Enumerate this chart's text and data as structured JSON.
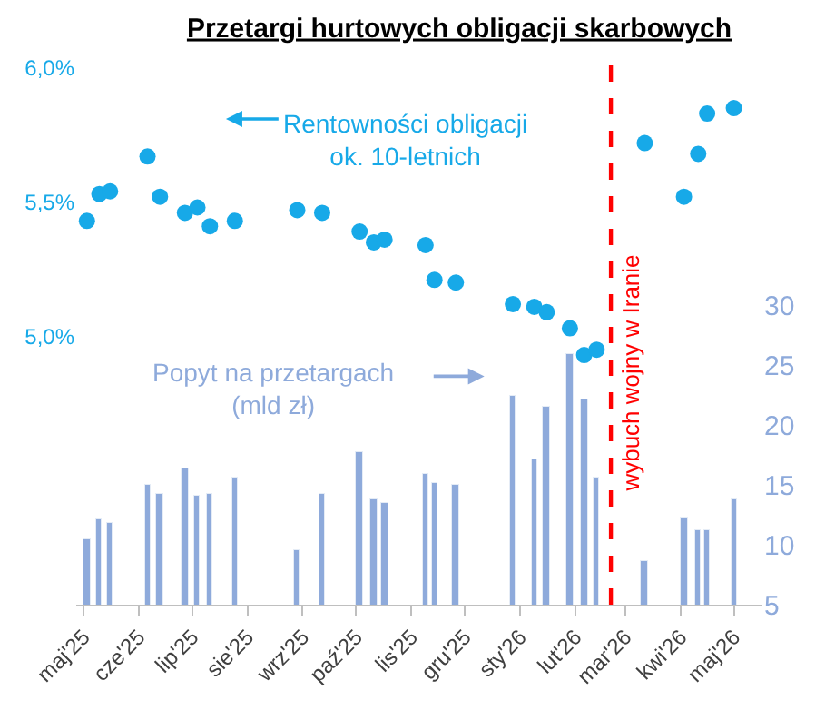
{
  "chart_data": {
    "type": "scatter",
    "title": "Przetargi hurtowych obligacji skarbowych",
    "x": [
      "2025-05-03",
      "2025-05-10",
      "2025-05-16",
      "2025-06-06",
      "2025-06-13",
      "2025-06-27",
      "2025-07-04",
      "2025-07-11",
      "2025-07-25",
      "2025-08-29",
      "2025-09-12",
      "2025-10-03",
      "2025-10-11",
      "2025-10-17",
      "2025-11-09",
      "2025-11-14",
      "2025-11-26",
      "2025-12-28",
      "2026-01-09",
      "2026-01-16",
      "2026-01-29",
      "2026-02-06",
      "2026-02-13",
      "2026-03-12",
      "2026-04-03",
      "2026-04-11",
      "2026-04-16",
      "2026-05-01"
    ],
    "series": [
      {
        "name": "Rentowności obligacji\nok. 10-letnich",
        "color": "#17a9e8",
        "values": [
          5.43,
          5.53,
          5.54,
          5.67,
          5.52,
          5.46,
          5.48,
          5.41,
          5.43,
          5.47,
          5.46,
          5.39,
          5.35,
          5.36,
          5.34,
          5.21,
          5.2,
          5.12,
          5.11,
          5.09,
          5.03,
          4.93,
          4.95,
          5.72,
          5.52,
          5.68,
          5.83,
          5.85
        ]
      },
      {
        "name": "Popyt na przetargach\n(mld zł)",
        "type": "bar",
        "axis": "y2",
        "color": "#8eaadb",
        "values": [
          10.4,
          12.2,
          11.8,
          15.0,
          14.3,
          16.4,
          14.1,
          14.3,
          15.7,
          9.5,
          14.2,
          17.8,
          13.8,
          13.5,
          16.0,
          15.2,
          15.0,
          22.4,
          17.2,
          21.5,
          25.9,
          22.2,
          15.7,
          8.7,
          12.3,
          11.2,
          11.2,
          13.8
        ]
      }
    ],
    "marker": "circle",
    "xlim": [
      "2025-04-27",
      "2026-05-17"
    ],
    "xticks": [
      {
        "value": "2025-05-01",
        "label": "maj'25"
      },
      {
        "value": "2025-06-01",
        "label": "cze'25"
      },
      {
        "value": "2025-07-01",
        "label": "lip'25"
      },
      {
        "value": "2025-08-01",
        "label": "sie'25"
      },
      {
        "value": "2025-09-01",
        "label": "wrz'25"
      },
      {
        "value": "2025-10-01",
        "label": "paź'25"
      },
      {
        "value": "2025-11-01",
        "label": "lis'25"
      },
      {
        "value": "2025-12-01",
        "label": "gru'25"
      },
      {
        "value": "2026-01-01",
        "label": "sty'26"
      },
      {
        "value": "2026-02-01",
        "label": "lut'26"
      },
      {
        "value": "2026-03-01",
        "label": "mar'26"
      },
      {
        "value": "2026-04-01",
        "label": "kwi'26"
      },
      {
        "value": "2026-05-01",
        "label": "maj'26"
      }
    ],
    "ylim": [
      4.0,
      6.05
    ],
    "yticks": [
      {
        "value": 5.0,
        "label": "5,0%"
      },
      {
        "value": 5.5,
        "label": "5,5%"
      },
      {
        "value": 6.0,
        "label": "6,0%"
      }
    ],
    "y2lim": [
      5,
      51
    ],
    "y2ticks": [
      5,
      10,
      15,
      20,
      25,
      30
    ],
    "ref_lines": [
      {
        "axis": "x",
        "value": "2026-02-21",
        "label": "wybuch wojny w Iranie",
        "color": "#ff0000",
        "line_style": "dashed"
      }
    ],
    "legend": "top"
  }
}
